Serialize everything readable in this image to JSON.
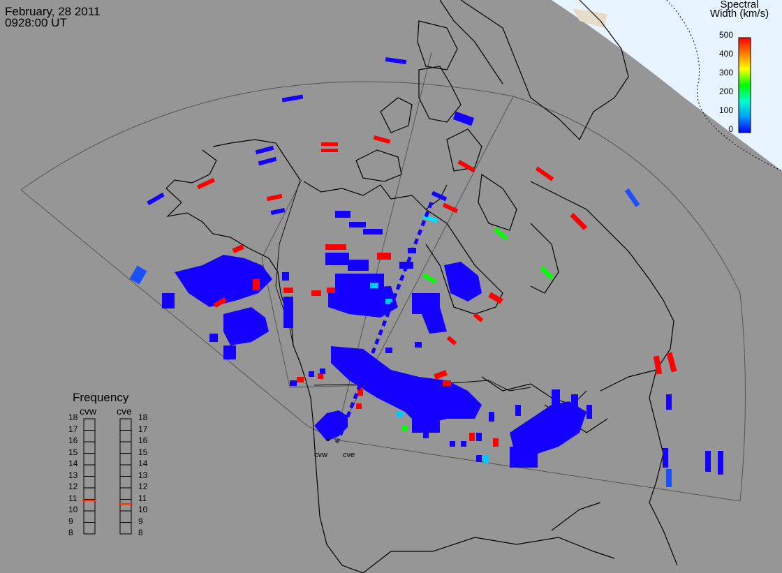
{
  "header": {
    "date": "February, 28 2011",
    "time": "0928:00 UT"
  },
  "colorbar": {
    "title_line1": "Spectral",
    "title_line2": "Width (km/s)",
    "ticks": [
      "500",
      "400",
      "300",
      "200",
      "100",
      "0"
    ],
    "range": [
      0,
      500
    ],
    "colors": [
      "#0000ff",
      "#00a0ff",
      "#00ffcc",
      "#00ff00",
      "#ffff00",
      "#ff8000",
      "#ff0000"
    ]
  },
  "frequency_panel": {
    "title": "Frequency",
    "radars": [
      {
        "name": "cvw",
        "value_mhz": 10.9
      },
      {
        "name": "cve",
        "value_mhz": 10.6
      }
    ],
    "ticks": [
      "18",
      "17",
      "16",
      "15",
      "14",
      "13",
      "12",
      "11",
      "10",
      "9",
      "8"
    ],
    "range": [
      8,
      18
    ]
  },
  "radar_sites": [
    {
      "name": "cvw",
      "label": "cvw"
    },
    {
      "name": "cve",
      "label": "cve"
    }
  ],
  "style": {
    "background": "#969696",
    "land_line": "#000000",
    "fov_line": "#555555",
    "sunlit_region": "#e8f4ff",
    "freq_marker": "#ff3300"
  }
}
